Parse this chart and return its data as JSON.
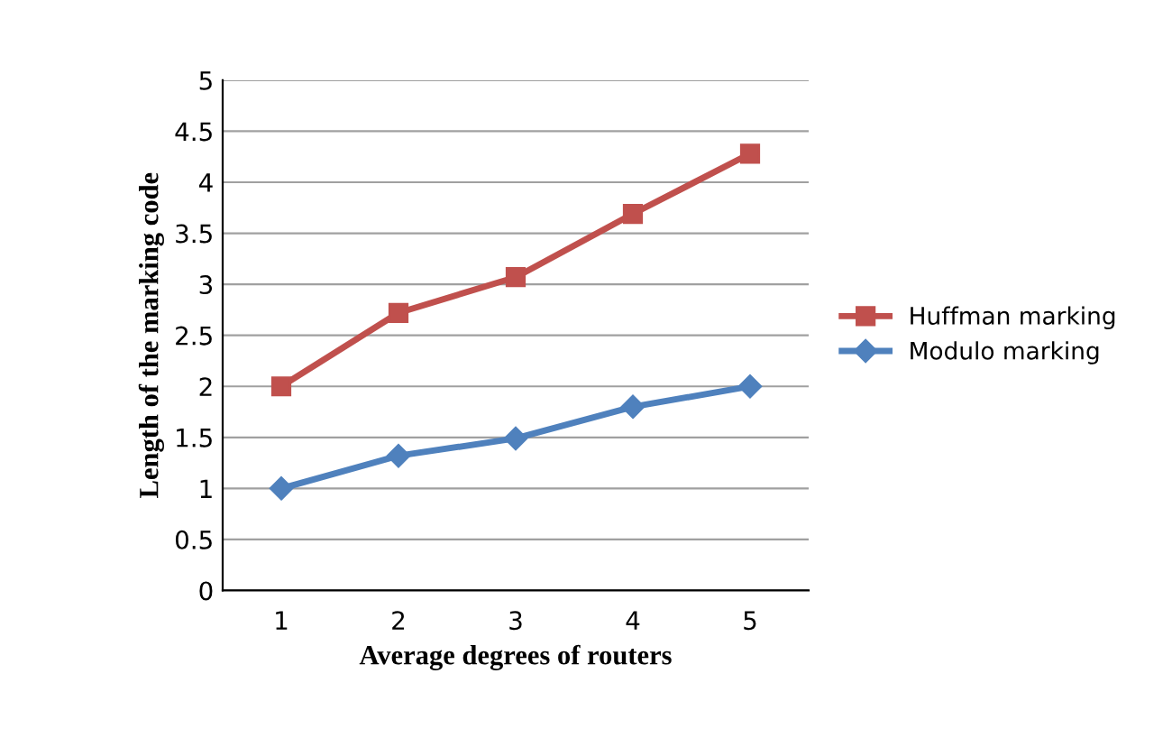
{
  "chart_data": {
    "type": "line",
    "xlabel": "Average degrees of routers",
    "ylabel": "Length of the marking code",
    "categories": [
      "1",
      "2",
      "3",
      "4",
      "5"
    ],
    "series": [
      {
        "name": "Huffman marking",
        "color": "#c0504d",
        "marker": "square",
        "values": [
          2,
          2.72,
          3.07,
          3.69,
          4.28
        ]
      },
      {
        "name": "Modulo marking",
        "color": "#4f81bd",
        "marker": "diamond",
        "values": [
          1,
          1.32,
          1.49,
          1.8,
          2
        ]
      }
    ],
    "ylim": [
      0,
      5
    ],
    "yticks": [
      0,
      0.5,
      1,
      1.5,
      2,
      2.5,
      3,
      3.5,
      4,
      4.5,
      5
    ],
    "grid": "y",
    "legend": "right",
    "line_style": "solid"
  }
}
